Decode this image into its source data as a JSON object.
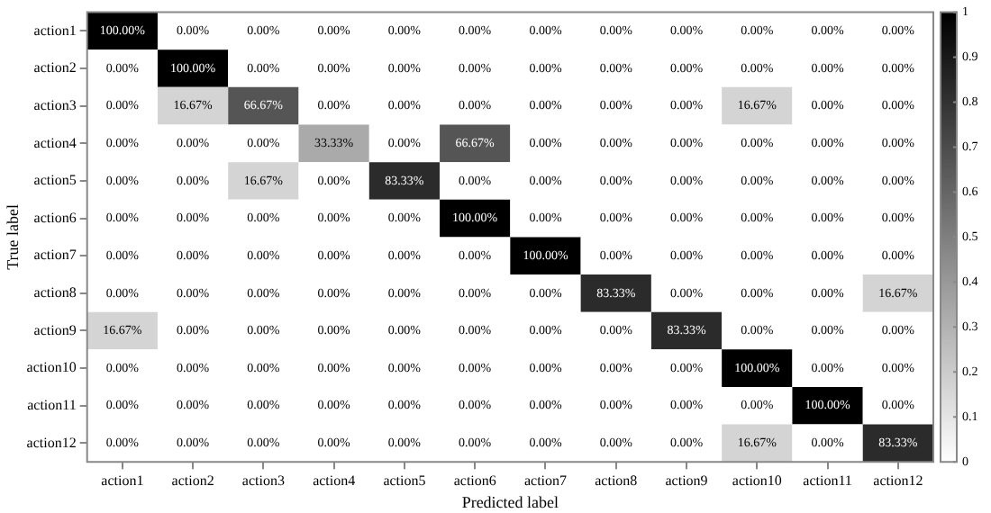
{
  "chart_data": {
    "type": "heatmap",
    "xlabel": "Predicted label",
    "ylabel": "True label",
    "categories": [
      "action1",
      "action2",
      "action3",
      "action4",
      "action5",
      "action6",
      "action7",
      "action8",
      "action9",
      "action10",
      "action11",
      "action12"
    ],
    "y_categories": [
      "action1",
      "action2",
      "action3",
      "action4",
      "action5",
      "action6",
      "action7",
      "action8",
      "action9",
      "action10",
      "action11",
      "action12"
    ],
    "cells": [
      [
        1,
        0,
        0,
        0,
        0,
        0,
        0,
        0,
        0,
        0,
        0,
        0
      ],
      [
        0,
        1,
        0,
        0,
        0,
        0,
        0,
        0,
        0,
        0,
        0,
        0
      ],
      [
        0,
        0.1667,
        0.6667,
        0,
        0,
        0,
        0,
        0,
        0,
        0.1667,
        0,
        0
      ],
      [
        0,
        0,
        0,
        0.3333,
        0,
        0.6667,
        0,
        0,
        0,
        0,
        0,
        0
      ],
      [
        0,
        0,
        0.1667,
        0,
        0.8333,
        0,
        0,
        0,
        0,
        0,
        0,
        0
      ],
      [
        0,
        0,
        0,
        0,
        0,
        1,
        0,
        0,
        0,
        0,
        0,
        0
      ],
      [
        0,
        0,
        0,
        0,
        0,
        0,
        1,
        0,
        0,
        0,
        0,
        0
      ],
      [
        0,
        0,
        0,
        0,
        0,
        0,
        0,
        0.8333,
        0,
        0,
        0,
        0.1667
      ],
      [
        0.1667,
        0,
        0,
        0,
        0,
        0,
        0,
        0,
        0.8333,
        0,
        0,
        0
      ],
      [
        0,
        0,
        0,
        0,
        0,
        0,
        0,
        0,
        0,
        1,
        0,
        0
      ],
      [
        0,
        0,
        0,
        0,
        0,
        0,
        0,
        0,
        0,
        0,
        1,
        0
      ],
      [
        0,
        0,
        0,
        0,
        0,
        0,
        0,
        0,
        0,
        0.1667,
        0,
        0.8333
      ]
    ],
    "cell_labels": [
      [
        "100.00%",
        "0.00%",
        "0.00%",
        "0.00%",
        "0.00%",
        "0.00%",
        "0.00%",
        "0.00%",
        "0.00%",
        "0.00%",
        "0.00%",
        "0.00%"
      ],
      [
        "0.00%",
        "100.00%",
        "0.00%",
        "0.00%",
        "0.00%",
        "0.00%",
        "0.00%",
        "0.00%",
        "0.00%",
        "0.00%",
        "0.00%",
        "0.00%"
      ],
      [
        "0.00%",
        "16.67%",
        "66.67%",
        "0.00%",
        "0.00%",
        "0.00%",
        "0.00%",
        "0.00%",
        "0.00%",
        "16.67%",
        "0.00%",
        "0.00%"
      ],
      [
        "0.00%",
        "0.00%",
        "0.00%",
        "33.33%",
        "0.00%",
        "66.67%",
        "0.00%",
        "0.00%",
        "0.00%",
        "0.00%",
        "0.00%",
        "0.00%"
      ],
      [
        "0.00%",
        "0.00%",
        "16.67%",
        "0.00%",
        "83.33%",
        "0.00%",
        "0.00%",
        "0.00%",
        "0.00%",
        "0.00%",
        "0.00%",
        "0.00%"
      ],
      [
        "0.00%",
        "0.00%",
        "0.00%",
        "0.00%",
        "0.00%",
        "100.00%",
        "0.00%",
        "0.00%",
        "0.00%",
        "0.00%",
        "0.00%",
        "0.00%"
      ],
      [
        "0.00%",
        "0.00%",
        "0.00%",
        "0.00%",
        "0.00%",
        "0.00%",
        "100.00%",
        "0.00%",
        "0.00%",
        "0.00%",
        "0.00%",
        "0.00%"
      ],
      [
        "0.00%",
        "0.00%",
        "0.00%",
        "0.00%",
        "0.00%",
        "0.00%",
        "0.00%",
        "83.33%",
        "0.00%",
        "0.00%",
        "0.00%",
        "16.67%"
      ],
      [
        "16.67%",
        "0.00%",
        "0.00%",
        "0.00%",
        "0.00%",
        "0.00%",
        "0.00%",
        "0.00%",
        "83.33%",
        "0.00%",
        "0.00%",
        "0.00%"
      ],
      [
        "0.00%",
        "0.00%",
        "0.00%",
        "0.00%",
        "0.00%",
        "0.00%",
        "0.00%",
        "0.00%",
        "0.00%",
        "100.00%",
        "0.00%",
        "0.00%"
      ],
      [
        "0.00%",
        "0.00%",
        "0.00%",
        "0.00%",
        "0.00%",
        "0.00%",
        "0.00%",
        "0.00%",
        "0.00%",
        "0.00%",
        "100.00%",
        "0.00%"
      ],
      [
        "0.00%",
        "0.00%",
        "0.00%",
        "0.00%",
        "0.00%",
        "0.00%",
        "0.00%",
        "0.00%",
        "0.00%",
        "16.67%",
        "0.00%",
        "83.33%"
      ]
    ],
    "clim": [
      0,
      1
    ],
    "cticks": [
      0,
      0.1,
      0.2,
      0.3,
      0.4,
      0.5,
      0.6,
      0.7,
      0.8,
      0.9,
      1
    ]
  }
}
